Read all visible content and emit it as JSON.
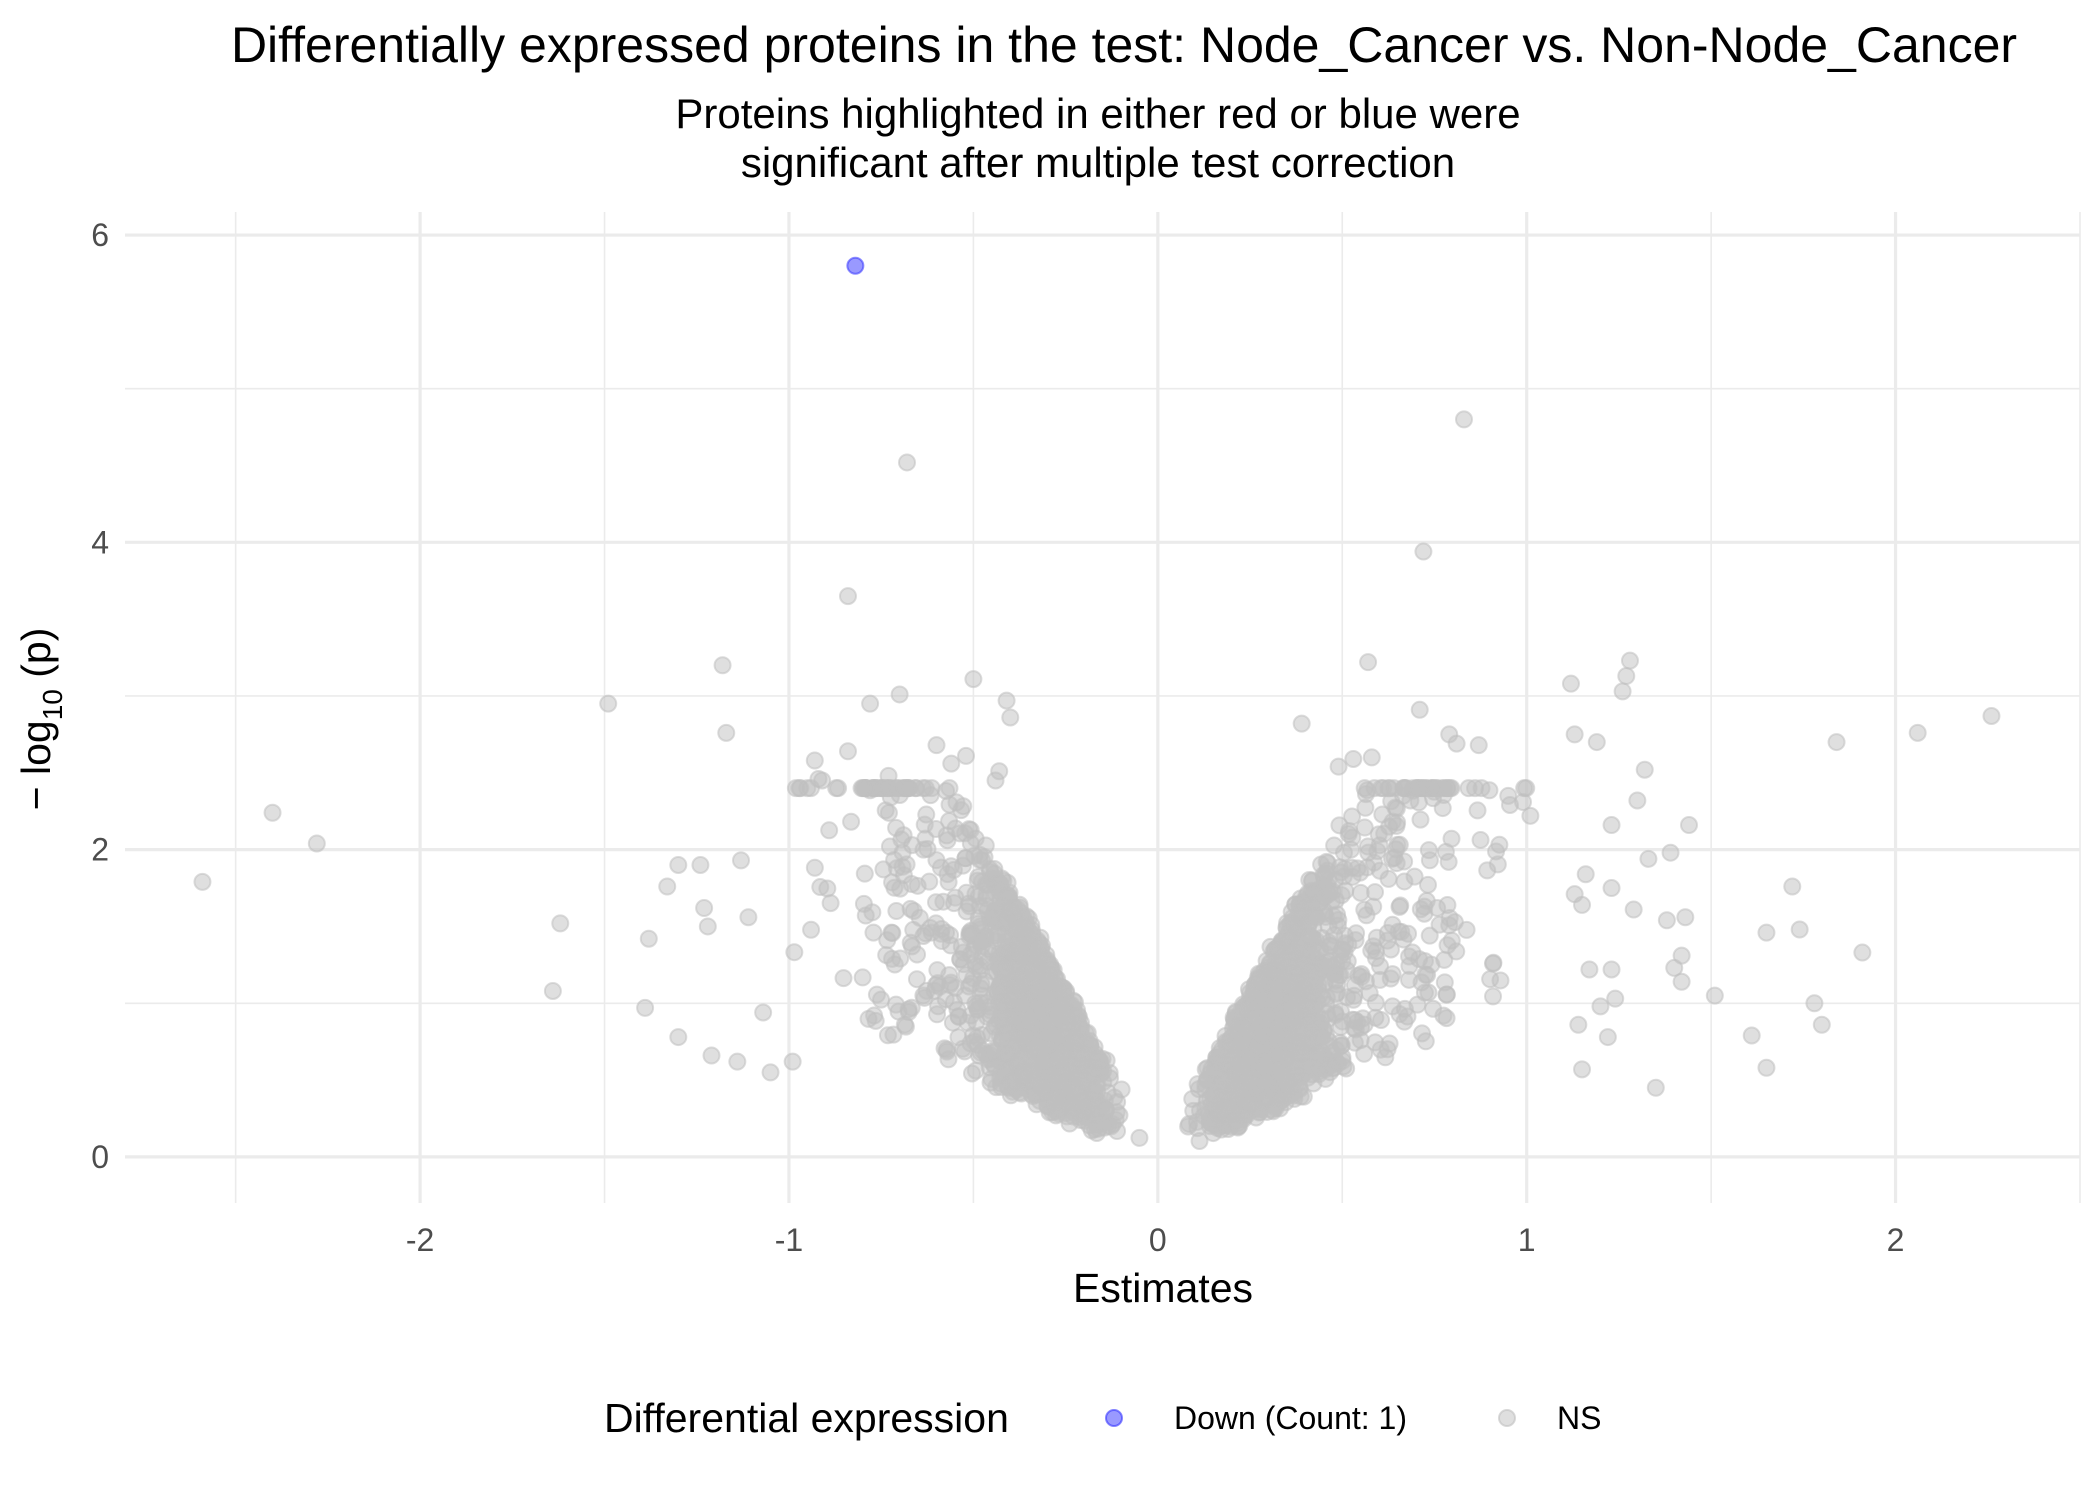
{
  "chart_data": {
    "type": "scatter",
    "title": "Differentially expressed proteins in the test: Node_Cancer vs. Non-Node_Cancer",
    "subtitle_lines": [
      "Proteins highlighted in either red or blue were",
      "significant after multiple test correction"
    ],
    "xlabel": "Estimates",
    "ylabel_main": "− log",
    "ylabel_sub": "10",
    "ylabel_tail": " (p)",
    "xlim": [
      -2.8,
      2.5
    ],
    "ylim": [
      -0.3,
      6.15
    ],
    "x_ticks": [
      -2,
      -1,
      0,
      1,
      2
    ],
    "x_tick_labels": [
      "-2",
      "-1",
      "0",
      "1",
      "2"
    ],
    "y_ticks": [
      0,
      2,
      4,
      6
    ],
    "y_tick_labels": [
      "0",
      "2",
      "4",
      "6"
    ],
    "grid": true,
    "legend": {
      "title": "Differential expression",
      "position": "bottom",
      "items": [
        {
          "label": "Down (Count: 1)",
          "color": "#3333ff"
        },
        {
          "label": "NS",
          "color": "#c0c0c0"
        }
      ]
    },
    "colors": {
      "down": "#3333ff",
      "ns": "#c0c0c0"
    },
    "series": [
      {
        "name": "Down (Count: 1)",
        "points": [
          [
            -0.82,
            5.8
          ]
        ]
      },
      {
        "name": "NS",
        "points": [
          [
            0.83,
            4.8
          ],
          [
            -0.68,
            4.52
          ],
          [
            0.72,
            3.94
          ],
          [
            -0.84,
            3.65
          ],
          [
            -1.18,
            3.2
          ],
          [
            0.57,
            3.22
          ],
          [
            1.28,
            3.23
          ],
          [
            1.27,
            3.13
          ],
          [
            1.12,
            3.08
          ],
          [
            1.26,
            3.03
          ],
          [
            -0.5,
            3.11
          ],
          [
            -0.7,
            3.01
          ],
          [
            -0.78,
            2.95
          ],
          [
            -0.41,
            2.97
          ],
          [
            -0.4,
            2.86
          ],
          [
            -1.49,
            2.95
          ],
          [
            2.26,
            2.87
          ],
          [
            0.71,
            2.91
          ],
          [
            0.39,
            2.82
          ],
          [
            0.79,
            2.75
          ],
          [
            0.81,
            2.69
          ],
          [
            0.87,
            2.68
          ],
          [
            1.13,
            2.75
          ],
          [
            1.19,
            2.7
          ],
          [
            2.06,
            2.76
          ],
          [
            1.84,
            2.7
          ],
          [
            -1.17,
            2.76
          ],
          [
            -0.84,
            2.64
          ],
          [
            -0.6,
            2.68
          ],
          [
            -0.56,
            2.56
          ],
          [
            -0.52,
            2.61
          ],
          [
            -0.43,
            2.51
          ],
          [
            -0.44,
            2.45
          ],
          [
            -0.93,
            2.58
          ],
          [
            -0.92,
            2.46
          ],
          [
            -0.91,
            2.45
          ],
          [
            -0.73,
            2.48
          ],
          [
            0.53,
            2.59
          ],
          [
            0.58,
            2.6
          ],
          [
            0.49,
            2.54
          ],
          [
            1.32,
            2.52
          ],
          [
            -2.4,
            2.24
          ],
          [
            -2.28,
            2.04
          ],
          [
            -2.59,
            1.79
          ],
          [
            -1.62,
            1.52
          ],
          [
            -1.38,
            1.42
          ],
          [
            -1.64,
            1.08
          ],
          [
            -1.39,
            0.97
          ],
          [
            -1.3,
            0.78
          ],
          [
            -1.33,
            1.76
          ],
          [
            -1.3,
            1.9
          ],
          [
            -1.24,
            1.9
          ],
          [
            -1.23,
            1.62
          ],
          [
            -1.22,
            1.5
          ],
          [
            -1.13,
            1.93
          ],
          [
            -1.11,
            1.56
          ],
          [
            -1.21,
            0.66
          ],
          [
            -1.14,
            0.62
          ],
          [
            -1.07,
            0.94
          ],
          [
            -1.05,
            0.55
          ],
          [
            -0.99,
            0.62
          ],
          [
            1.65,
            1.46
          ],
          [
            1.72,
            1.76
          ],
          [
            1.74,
            1.48
          ],
          [
            1.78,
            1.0
          ],
          [
            1.8,
            0.86
          ],
          [
            1.91,
            1.33
          ],
          [
            1.51,
            1.05
          ],
          [
            1.61,
            0.79
          ],
          [
            1.65,
            0.58
          ],
          [
            1.35,
            0.45
          ],
          [
            1.38,
            1.54
          ],
          [
            1.43,
            1.56
          ],
          [
            1.4,
            1.23
          ],
          [
            1.42,
            1.31
          ],
          [
            1.42,
            1.14
          ],
          [
            1.44,
            2.16
          ],
          [
            1.39,
            1.98
          ],
          [
            1.3,
            2.32
          ],
          [
            1.33,
            1.94
          ],
          [
            1.29,
            1.61
          ],
          [
            1.23,
            1.75
          ],
          [
            1.23,
            1.22
          ],
          [
            1.24,
            1.03
          ],
          [
            1.2,
            0.98
          ],
          [
            1.22,
            0.78
          ],
          [
            1.15,
            0.57
          ],
          [
            1.14,
            0.86
          ],
          [
            1.17,
            1.22
          ],
          [
            1.15,
            1.64
          ],
          [
            1.13,
            1.71
          ],
          [
            1.23,
            2.16
          ],
          [
            1.16,
            1.84
          ],
          [
            0.99,
            2.31
          ],
          [
            1.01,
            2.22
          ],
          [
            0.95,
            2.35
          ]
        ]
      }
    ]
  }
}
